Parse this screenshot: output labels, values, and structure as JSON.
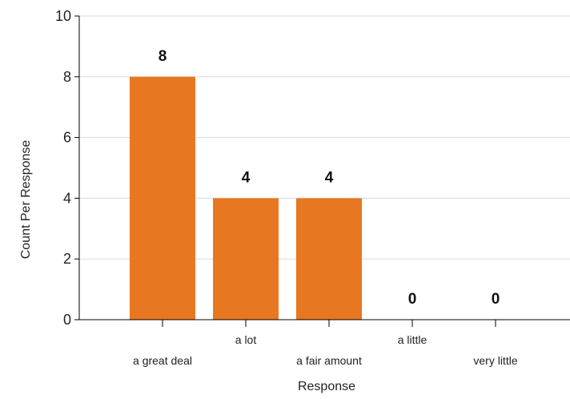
{
  "chart_data": {
    "type": "bar",
    "title": "",
    "xlabel": "Response",
    "ylabel": "Count Per Response",
    "categories": [
      "a great deal",
      "a lot",
      "a fair amount",
      "a little",
      "very little"
    ],
    "values": [
      8,
      4,
      4,
      0,
      0
    ],
    "ylim": [
      0,
      10
    ],
    "yticks": [
      "0",
      "2",
      "4",
      "6",
      "8",
      "10"
    ],
    "grid": true,
    "bar_color": "#e87722",
    "grid_color": "#d9d9d9"
  }
}
